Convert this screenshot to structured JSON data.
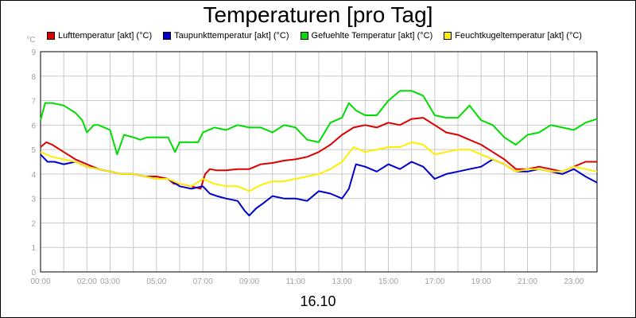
{
  "chart_data": {
    "type": "line",
    "title": "Temperaturen [pro Tag]",
    "date_label": "16.10",
    "y_unit": "°C",
    "ylim": [
      0,
      9
    ],
    "y_ticks": [
      "0",
      "1",
      "2",
      "3",
      "4",
      "5",
      "6",
      "7",
      "8",
      "9"
    ],
    "x_ticks": [
      "00:00",
      "02:00",
      "03:00",
      "05:00",
      "07:00",
      "09:00",
      "11:00",
      "13:00",
      "15:00",
      "17:00",
      "19:00",
      "21:00",
      "23:00"
    ],
    "x_tick_hours": [
      0,
      2,
      3,
      5,
      7,
      9,
      11,
      13,
      15,
      17,
      19,
      21,
      23
    ],
    "xlim_hours": [
      0,
      24
    ],
    "grid": true,
    "legend_position": "top",
    "series": [
      {
        "name": "Lufttemperatur [akt] (°C)",
        "color": "#dd0000",
        "points": [
          [
            0,
            5.1
          ],
          [
            0.25,
            5.3
          ],
          [
            0.5,
            5.2
          ],
          [
            1,
            4.9
          ],
          [
            1.5,
            4.6
          ],
          [
            2,
            4.4
          ],
          [
            2.5,
            4.2
          ],
          [
            3,
            4.1
          ],
          [
            3.5,
            4.0
          ],
          [
            4,
            4.0
          ],
          [
            4.5,
            3.9
          ],
          [
            5,
            3.9
          ],
          [
            5.5,
            3.8
          ],
          [
            5.75,
            3.6
          ],
          [
            6,
            3.6
          ],
          [
            6.5,
            3.5
          ],
          [
            6.9,
            3.4
          ],
          [
            7.1,
            4.0
          ],
          [
            7.3,
            4.2
          ],
          [
            7.6,
            4.15
          ],
          [
            8,
            4.15
          ],
          [
            8.5,
            4.2
          ],
          [
            9,
            4.2
          ],
          [
            9.5,
            4.4
          ],
          [
            10,
            4.45
          ],
          [
            10.5,
            4.55
          ],
          [
            11,
            4.6
          ],
          [
            11.5,
            4.7
          ],
          [
            12,
            4.9
          ],
          [
            12.5,
            5.2
          ],
          [
            13,
            5.6
          ],
          [
            13.5,
            5.9
          ],
          [
            14,
            6.0
          ],
          [
            14.5,
            5.9
          ],
          [
            15,
            6.1
          ],
          [
            15.5,
            6.0
          ],
          [
            16,
            6.25
          ],
          [
            16.5,
            6.3
          ],
          [
            17,
            6.0
          ],
          [
            17.5,
            5.7
          ],
          [
            18,
            5.6
          ],
          [
            18.5,
            5.4
          ],
          [
            19,
            5.2
          ],
          [
            19.5,
            4.9
          ],
          [
            20,
            4.6
          ],
          [
            20.5,
            4.2
          ],
          [
            21,
            4.2
          ],
          [
            21.5,
            4.3
          ],
          [
            22,
            4.2
          ],
          [
            22.5,
            4.1
          ],
          [
            23,
            4.3
          ],
          [
            23.5,
            4.5
          ],
          [
            24,
            4.5
          ]
        ]
      },
      {
        "name": "Taupunkttemperatur [akt] (°C)",
        "color": "#0000cc",
        "points": [
          [
            0,
            4.8
          ],
          [
            0.3,
            4.5
          ],
          [
            0.6,
            4.5
          ],
          [
            1,
            4.4
          ],
          [
            1.5,
            4.5
          ],
          [
            2,
            4.3
          ],
          [
            2.5,
            4.2
          ],
          [
            3,
            4.1
          ],
          [
            3.5,
            4.0
          ],
          [
            4,
            4.0
          ],
          [
            4.5,
            3.9
          ],
          [
            5,
            3.8
          ],
          [
            5.5,
            3.8
          ],
          [
            6,
            3.5
          ],
          [
            6.5,
            3.4
          ],
          [
            7,
            3.5
          ],
          [
            7.3,
            3.2
          ],
          [
            7.6,
            3.1
          ],
          [
            8,
            3.0
          ],
          [
            8.5,
            2.9
          ],
          [
            8.8,
            2.5
          ],
          [
            9,
            2.3
          ],
          [
            9.3,
            2.6
          ],
          [
            9.6,
            2.8
          ],
          [
            10,
            3.1
          ],
          [
            10.5,
            3.0
          ],
          [
            11,
            3.0
          ],
          [
            11.5,
            2.9
          ],
          [
            12,
            3.3
          ],
          [
            12.5,
            3.2
          ],
          [
            13,
            3.0
          ],
          [
            13.3,
            3.4
          ],
          [
            13.6,
            4.4
          ],
          [
            14,
            4.3
          ],
          [
            14.5,
            4.1
          ],
          [
            15,
            4.4
          ],
          [
            15.5,
            4.2
          ],
          [
            16,
            4.5
          ],
          [
            16.5,
            4.3
          ],
          [
            17,
            3.8
          ],
          [
            17.5,
            4.0
          ],
          [
            18,
            4.1
          ],
          [
            18.5,
            4.2
          ],
          [
            19,
            4.3
          ],
          [
            19.5,
            4.6
          ],
          [
            20,
            4.4
          ],
          [
            20.5,
            4.1
          ],
          [
            21,
            4.1
          ],
          [
            21.5,
            4.2
          ],
          [
            22,
            4.1
          ],
          [
            22.5,
            4.0
          ],
          [
            23,
            4.2
          ],
          [
            23.5,
            3.9
          ],
          [
            24,
            3.65
          ]
        ]
      },
      {
        "name": "Gefuehlte Temperatur [akt] (°C)",
        "color": "#00dd00",
        "points": [
          [
            0,
            6.2
          ],
          [
            0.2,
            6.9
          ],
          [
            0.5,
            6.9
          ],
          [
            1,
            6.8
          ],
          [
            1.5,
            6.5
          ],
          [
            1.8,
            6.2
          ],
          [
            2,
            5.7
          ],
          [
            2.3,
            6.0
          ],
          [
            2.5,
            6.0
          ],
          [
            3,
            5.8
          ],
          [
            3.3,
            4.8
          ],
          [
            3.6,
            5.6
          ],
          [
            4,
            5.5
          ],
          [
            4.3,
            5.4
          ],
          [
            4.6,
            5.5
          ],
          [
            5,
            5.5
          ],
          [
            5.5,
            5.5
          ],
          [
            5.8,
            4.9
          ],
          [
            6,
            5.3
          ],
          [
            6.5,
            5.3
          ],
          [
            6.8,
            5.3
          ],
          [
            7,
            5.7
          ],
          [
            7.5,
            5.9
          ],
          [
            8,
            5.8
          ],
          [
            8.5,
            6.0
          ],
          [
            9,
            5.9
          ],
          [
            9.5,
            5.9
          ],
          [
            10,
            5.7
          ],
          [
            10.5,
            6.0
          ],
          [
            11,
            5.9
          ],
          [
            11.5,
            5.4
          ],
          [
            12,
            5.3
          ],
          [
            12.5,
            6.1
          ],
          [
            13,
            6.3
          ],
          [
            13.3,
            6.9
          ],
          [
            13.6,
            6.6
          ],
          [
            14,
            6.4
          ],
          [
            14.5,
            6.4
          ],
          [
            15,
            7.0
          ],
          [
            15.5,
            7.4
          ],
          [
            16,
            7.4
          ],
          [
            16.5,
            7.2
          ],
          [
            17,
            6.4
          ],
          [
            17.5,
            6.3
          ],
          [
            18,
            6.3
          ],
          [
            18.5,
            6.8
          ],
          [
            19,
            6.2
          ],
          [
            19.5,
            6.0
          ],
          [
            20,
            5.5
          ],
          [
            20.5,
            5.2
          ],
          [
            21,
            5.6
          ],
          [
            21.5,
            5.7
          ],
          [
            22,
            6.0
          ],
          [
            22.5,
            5.9
          ],
          [
            23,
            5.8
          ],
          [
            23.5,
            6.1
          ],
          [
            24,
            6.25
          ]
        ]
      },
      {
        "name": "Feuchtkugeltemperatur [akt] (°C)",
        "color": "#ffee00",
        "points": [
          [
            0,
            4.9
          ],
          [
            0.5,
            4.7
          ],
          [
            1,
            4.6
          ],
          [
            1.5,
            4.5
          ],
          [
            2,
            4.3
          ],
          [
            2.5,
            4.2
          ],
          [
            3,
            4.1
          ],
          [
            3.5,
            4.0
          ],
          [
            4,
            4.0
          ],
          [
            4.5,
            3.9
          ],
          [
            5,
            3.8
          ],
          [
            5.5,
            3.8
          ],
          [
            6,
            3.6
          ],
          [
            6.5,
            3.5
          ],
          [
            7,
            3.8
          ],
          [
            7.5,
            3.6
          ],
          [
            8,
            3.5
          ],
          [
            8.5,
            3.5
          ],
          [
            9,
            3.3
          ],
          [
            9.5,
            3.55
          ],
          [
            10,
            3.7
          ],
          [
            10.5,
            3.7
          ],
          [
            11,
            3.8
          ],
          [
            11.5,
            3.9
          ],
          [
            12,
            4.0
          ],
          [
            12.5,
            4.2
          ],
          [
            13,
            4.5
          ],
          [
            13.5,
            5.1
          ],
          [
            14,
            4.9
          ],
          [
            14.5,
            5.0
          ],
          [
            15,
            5.1
          ],
          [
            15.5,
            5.1
          ],
          [
            16,
            5.3
          ],
          [
            16.5,
            5.2
          ],
          [
            17,
            4.8
          ],
          [
            17.5,
            4.9
          ],
          [
            18,
            5.0
          ],
          [
            18.5,
            5.0
          ],
          [
            19,
            4.8
          ],
          [
            19.5,
            4.6
          ],
          [
            20,
            4.4
          ],
          [
            20.5,
            4.1
          ],
          [
            21,
            4.2
          ],
          [
            21.5,
            4.2
          ],
          [
            22,
            4.1
          ],
          [
            22.5,
            4.1
          ],
          [
            23,
            4.3
          ],
          [
            23.5,
            4.2
          ],
          [
            24,
            4.1
          ]
        ]
      }
    ]
  }
}
